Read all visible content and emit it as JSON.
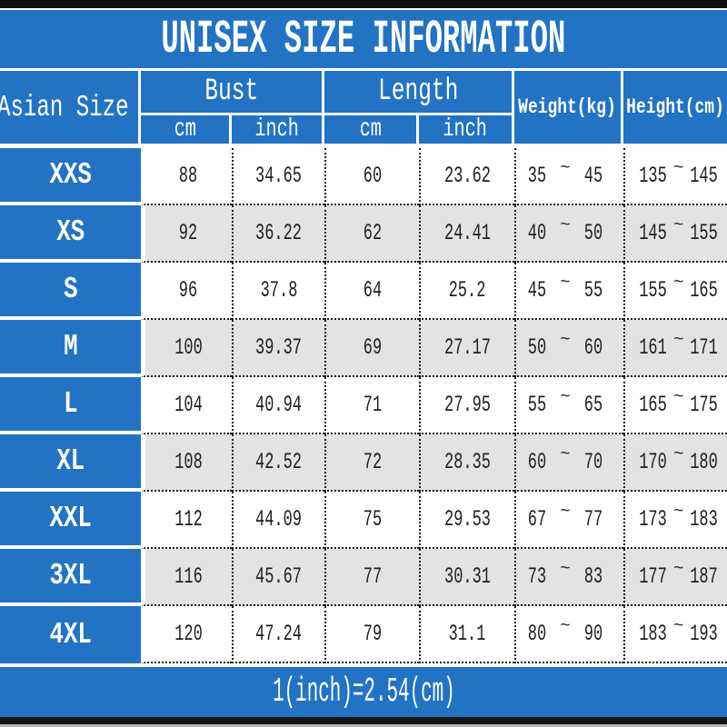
{
  "title": "UNISEX SIZE INFORMATION",
  "footer_note": "1(inch)=2.54(cm)",
  "symbols": {
    "tilde": "~"
  },
  "colors": {
    "accent_blue": "#2273c4",
    "row_alt_gray": "#e3e3e3",
    "border_dotted_black": "#1a1a1a",
    "header_text_white": "#ffffff",
    "data_text_black": "#1e1e1e"
  },
  "table": {
    "corner_header": "Asian Size",
    "group_headers": [
      {
        "label": "Bust",
        "sub": [
          "cm",
          "inch"
        ]
      },
      {
        "label": "Length",
        "sub": [
          "cm",
          "inch"
        ]
      }
    ],
    "single_headers": [
      "Weight(kg)",
      "Height(cm)"
    ],
    "rows": [
      {
        "size": "XXS",
        "bust_cm": "88",
        "bust_inch": "34.65",
        "length_cm": "60",
        "length_inch": "23.62",
        "weight_min": "35",
        "weight_max": "45",
        "height_min": "135",
        "height_max": "145"
      },
      {
        "size": "XS",
        "bust_cm": "92",
        "bust_inch": "36.22",
        "length_cm": "62",
        "length_inch": "24.41",
        "weight_min": "40",
        "weight_max": "50",
        "height_min": "145",
        "height_max": "155"
      },
      {
        "size": "S",
        "bust_cm": "96",
        "bust_inch": "37.8",
        "length_cm": "64",
        "length_inch": "25.2",
        "weight_min": "45",
        "weight_max": "55",
        "height_min": "155",
        "height_max": "165"
      },
      {
        "size": "M",
        "bust_cm": "100",
        "bust_inch": "39.37",
        "length_cm": "69",
        "length_inch": "27.17",
        "weight_min": "50",
        "weight_max": "60",
        "height_min": "161",
        "height_max": "171"
      },
      {
        "size": "L",
        "bust_cm": "104",
        "bust_inch": "40.94",
        "length_cm": "71",
        "length_inch": "27.95",
        "weight_min": "55",
        "weight_max": "65",
        "height_min": "165",
        "height_max": "175"
      },
      {
        "size": "XL",
        "bust_cm": "108",
        "bust_inch": "42.52",
        "length_cm": "72",
        "length_inch": "28.35",
        "weight_min": "60",
        "weight_max": "70",
        "height_min": "170",
        "height_max": "180"
      },
      {
        "size": "XXL",
        "bust_cm": "112",
        "bust_inch": "44.09",
        "length_cm": "75",
        "length_inch": "29.53",
        "weight_min": "67",
        "weight_max": "77",
        "height_min": "173",
        "height_max": "183"
      },
      {
        "size": "3XL",
        "bust_cm": "116",
        "bust_inch": "45.67",
        "length_cm": "77",
        "length_inch": "30.31",
        "weight_min": "73",
        "weight_max": "83",
        "height_min": "177",
        "height_max": "187"
      },
      {
        "size": "4XL",
        "bust_cm": "120",
        "bust_inch": "47.24",
        "length_cm": "79",
        "length_inch": "31.1",
        "weight_min": "80",
        "weight_max": "90",
        "height_min": "183",
        "height_max": "193"
      }
    ]
  }
}
